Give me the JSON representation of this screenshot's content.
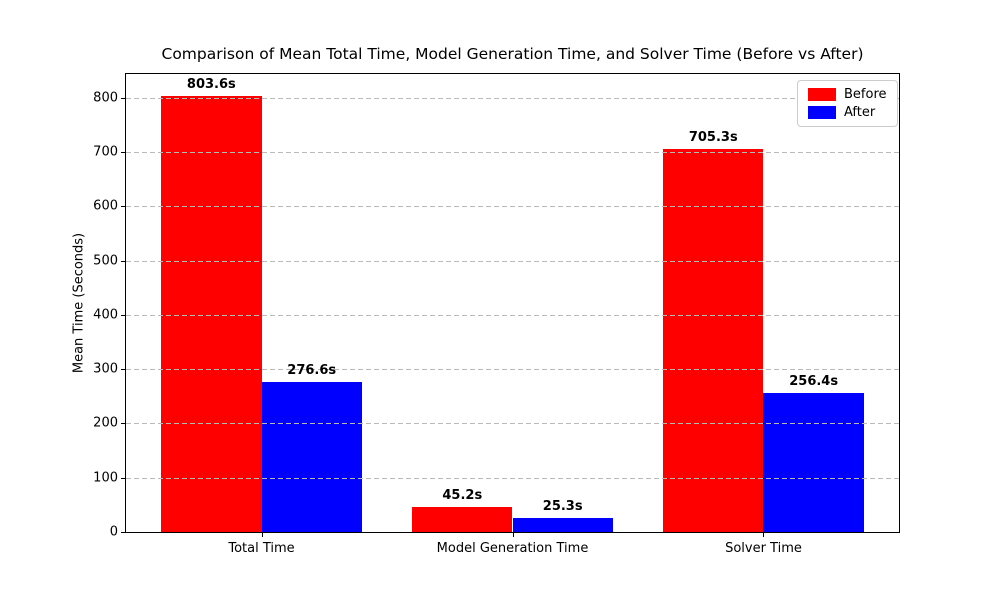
{
  "chart_data": {
    "type": "bar",
    "title": "Comparison of Mean Total Time, Model Generation Time, and Solver Time (Before vs After)",
    "xlabel": "",
    "ylabel": "Mean Time (Seconds)",
    "categories": [
      "Total Time",
      "Model Generation Time",
      "Solver Time"
    ],
    "series": [
      {
        "name": "Before",
        "color": "#ff0000",
        "values": [
          803.6,
          45.2,
          705.3
        ],
        "labels": [
          "803.6s",
          "45.2s",
          "705.3s"
        ]
      },
      {
        "name": "After",
        "color": "#0000ff",
        "values": [
          276.6,
          25.3,
          256.4
        ],
        "labels": [
          "276.6s",
          "25.3s",
          "256.4s"
        ]
      }
    ],
    "ylim": [
      0,
      843.8
    ],
    "yticks": [
      0,
      100,
      200,
      300,
      400,
      500,
      600,
      700,
      800
    ],
    "grid": "dashed-horizontal",
    "grid_above_bars": true,
    "legend_position": "upper-right",
    "bar_unit_suffix": "s"
  }
}
